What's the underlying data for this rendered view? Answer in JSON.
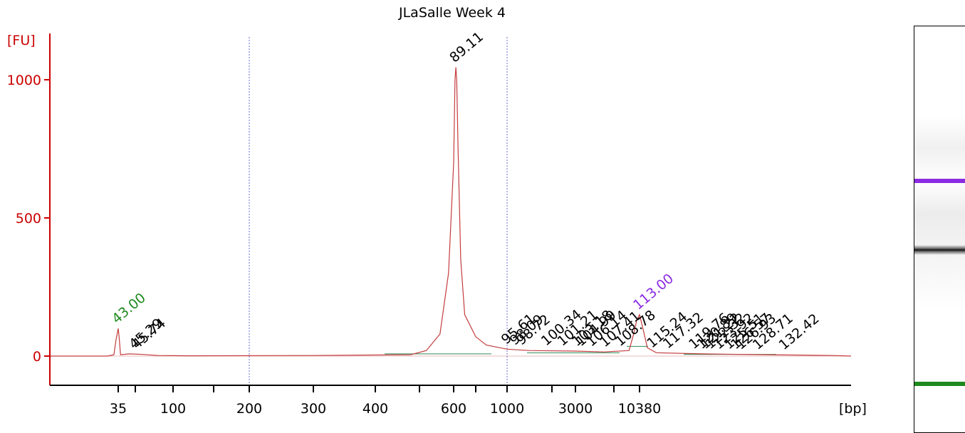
{
  "chart_data": {
    "type": "line",
    "title": "JLaSalle Week 4",
    "xlabel": "[bp]",
    "ylabel": "[FU]",
    "ylim": [
      -100,
      1100
    ],
    "yticks": [
      0,
      500,
      1000
    ],
    "xticks": [
      "35",
      "100",
      "200",
      "300",
      "400",
      "600",
      "1000",
      "3000",
      "10380"
    ],
    "x_scale": "piecewise (ladder-calibrated)",
    "x_mark_values": [
      35,
      50,
      100,
      150,
      200,
      300,
      400,
      500,
      600,
      700,
      1000,
      2000,
      3000,
      7000,
      10380
    ],
    "series": [
      {
        "color": "#c43c3c",
        "points": [
          [
            30,
            0
          ],
          [
            33,
            5
          ],
          [
            34,
            60
          ],
          [
            35,
            100
          ],
          [
            36,
            60
          ],
          [
            37,
            5
          ],
          [
            45,
            8
          ],
          [
            60,
            6
          ],
          [
            80,
            2
          ],
          [
            120,
            1
          ],
          [
            300,
            2
          ],
          [
            480,
            5
          ],
          [
            520,
            20
          ],
          [
            560,
            80
          ],
          [
            585,
            300
          ],
          [
            600,
            700
          ],
          [
            606,
            1000
          ],
          [
            610,
            1045
          ],
          [
            614,
            1000
          ],
          [
            620,
            750
          ],
          [
            632,
            350
          ],
          [
            650,
            150
          ],
          [
            700,
            70
          ],
          [
            800,
            40
          ],
          [
            1000,
            25
          ],
          [
            1500,
            20
          ],
          [
            3000,
            18
          ],
          [
            6000,
            15
          ],
          [
            9000,
            20
          ],
          [
            9700,
            90
          ],
          [
            10000,
            130
          ],
          [
            10380,
            150
          ],
          [
            10800,
            110
          ],
          [
            11600,
            30
          ],
          [
            13000,
            12
          ],
          [
            20000,
            8
          ],
          [
            40000,
            5
          ],
          [
            80000,
            2
          ]
        ]
      }
    ],
    "peak_labels": [
      {
        "label": "43.00",
        "x": 35,
        "y": 100,
        "color": "#1e8a1e"
      },
      {
        "label": "45.29",
        "x": 50,
        "y": 8,
        "color": "#000000"
      },
      {
        "label": "45.74",
        "x": 54,
        "y": 8,
        "color": "#000000"
      },
      {
        "label": "89.11",
        "x": 610,
        "y": 1045,
        "color": "#000000"
      },
      {
        "label": "95.61",
        "x": 1010,
        "y": 25,
        "color": "#000000"
      },
      {
        "label": "98.09",
        "x": 1200,
        "y": 22,
        "color": "#000000"
      },
      {
        "label": "98.72",
        "x": 1350,
        "y": 22,
        "color": "#000000"
      },
      {
        "label": "100.34",
        "x": 1900,
        "y": 20,
        "color": "#000000"
      },
      {
        "label": "101.21",
        "x": 2500,
        "y": 19,
        "color": "#000000"
      },
      {
        "label": "103.18",
        "x": 3300,
        "y": 18,
        "color": "#000000"
      },
      {
        "label": "104.99",
        "x": 3700,
        "y": 18,
        "color": "#000000"
      },
      {
        "label": "106.14",
        "x": 4800,
        "y": 17,
        "color": "#000000"
      },
      {
        "label": "107.41",
        "x": 6200,
        "y": 15,
        "color": "#000000"
      },
      {
        "label": "108.78",
        "x": 8000,
        "y": 18,
        "color": "#000000"
      },
      {
        "label": "113.00",
        "x": 10380,
        "y": 150,
        "color": "#8b2be2"
      },
      {
        "label": "115.24",
        "x": 12500,
        "y": 12,
        "color": "#000000"
      },
      {
        "label": "117.32",
        "x": 15000,
        "y": 10,
        "color": "#000000"
      },
      {
        "label": "119.76",
        "x": 19000,
        "y": 8,
        "color": "#000000"
      },
      {
        "label": "120.89",
        "x": 20500,
        "y": 8,
        "color": "#000000"
      },
      {
        "label": "121.22",
        "x": 21500,
        "y": 8,
        "color": "#000000"
      },
      {
        "label": "122.32",
        "x": 23000,
        "y": 8,
        "color": "#000000"
      },
      {
        "label": "123.92",
        "x": 25500,
        "y": 7,
        "color": "#000000"
      },
      {
        "label": "125.51",
        "x": 28500,
        "y": 7,
        "color": "#000000"
      },
      {
        "label": "126.57",
        "x": 30500,
        "y": 7,
        "color": "#000000"
      },
      {
        "label": "126.93",
        "x": 32000,
        "y": 6,
        "color": "#000000"
      },
      {
        "label": "128.71",
        "x": 37000,
        "y": 6,
        "color": "#000000"
      },
      {
        "label": "132.42",
        "x": 50000,
        "y": 5,
        "color": "#000000"
      }
    ],
    "vertical_gridlines_bp": [
      200,
      1000
    ],
    "grid": false,
    "colors": {
      "axis": "#cc0000",
      "signal": "#c43c3c",
      "lower_marker": "#1e8a1e",
      "upper_marker": "#8b2be2",
      "baseline": "#2e8b57"
    }
  },
  "gel": {
    "bands": [
      {
        "color": "#8b2be2",
        "position": 0.38,
        "kind": "upper-marker"
      },
      {
        "color": "#111111",
        "position": 0.55,
        "kind": "sample"
      },
      {
        "color": "#1e8a1e",
        "position": 0.88,
        "kind": "lower-marker"
      }
    ]
  }
}
